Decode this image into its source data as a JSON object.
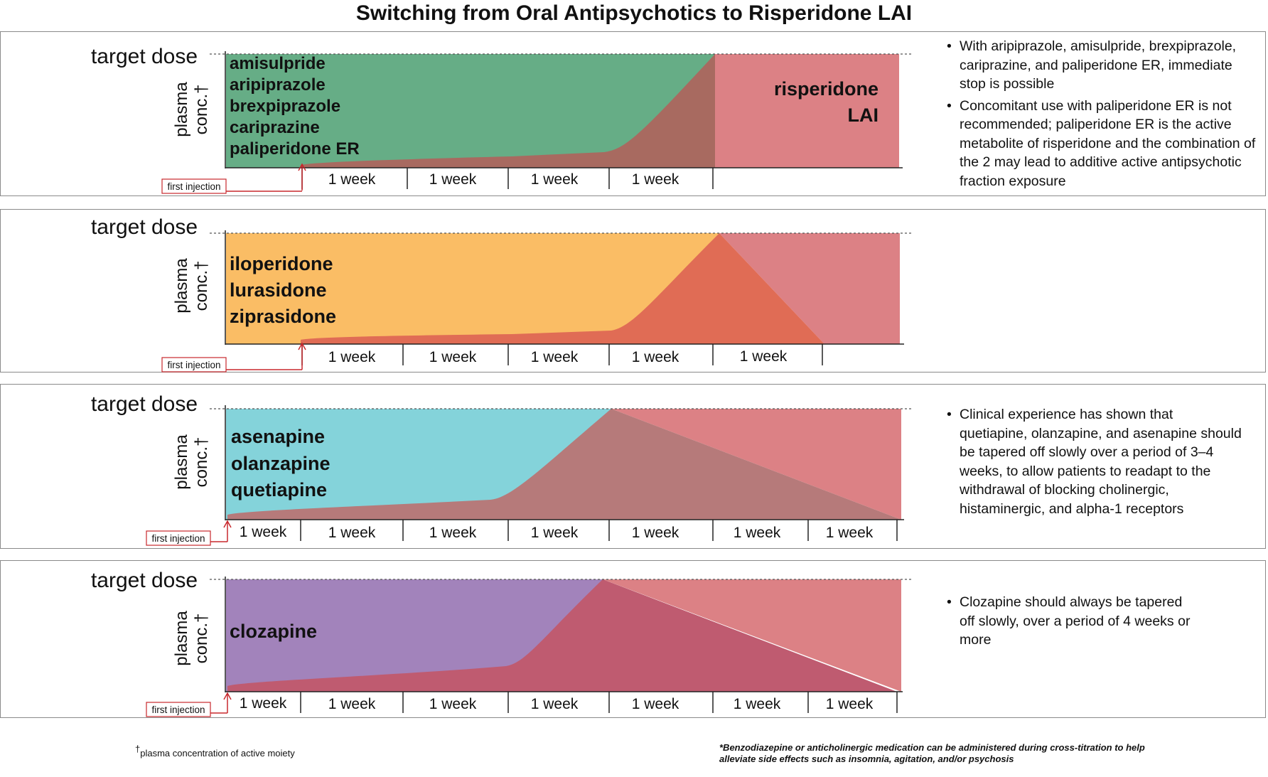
{
  "title": "Switching from Oral Antipsychotics to Risperidone LAI",
  "common": {
    "target_dose": "target dose",
    "ylabel_line1": "plasma",
    "ylabel_line2": "conc.†",
    "first_injection": "first injection",
    "week_label": "1 week"
  },
  "panels": [
    {
      "id": "panel-1",
      "drugs": [
        "amisulpride",
        "aripiprazole",
        "brexpiprazole",
        "cariprazine",
        "paliperidone ER"
      ],
      "lai_label": [
        "risperidone",
        "LAI"
      ],
      "oral_color": "#66ad86",
      "weeks": [
        "1 week",
        "1 week",
        "1 week",
        "1 week"
      ],
      "notes": [
        "With aripiprazole, amisulpride, brexpiprazole, cariprazine, and paliperidone ER, immediate stop is possible",
        "Concomitant use with paliperidone ER is not recommended; paliperidone ER is the active metabolite of risperidone and the combination of the 2 may lead to additive active antipsychotic fraction exposure"
      ]
    },
    {
      "id": "panel-2",
      "drugs": [
        "iloperidone",
        "lurasidone",
        "ziprasidone"
      ],
      "oral_color": "#fabd65",
      "weeks": [
        "1 week",
        "1 week",
        "1 week",
        "1 week",
        "1 week"
      ],
      "notes": []
    },
    {
      "id": "panel-3",
      "drugs": [
        "asenapine",
        "olanzapine",
        "quetiapine"
      ],
      "oral_color": "#84d3da",
      "weeks": [
        "1 week",
        "1 week",
        "1 week",
        "1 week",
        "1 week",
        "1 week",
        "1 week"
      ],
      "notes": [
        "Clinical experience has shown that quetiapine, olanzapine, and asenapine should be tapered off slowly over a period of  3–4 weeks, to allow patients to readapt to the withdrawal of blocking cholinergic, histaminergic, and alpha-1 receptors"
      ]
    },
    {
      "id": "panel-4",
      "drugs": [
        "clozapine"
      ],
      "oral_color": "#a283bb",
      "weeks": [
        "1 week",
        "1 week",
        "1 week",
        "1 week",
        "1 week",
        "1 week",
        "1 week"
      ],
      "notes": [
        "Clozapine should always be tapered off slowly, over a period of 4 weeks or more"
      ]
    }
  ],
  "colors": {
    "lai": "#dc8185",
    "arrow": "#c8282d",
    "axis": "#222222"
  },
  "footnote_left_mark": "†",
  "footnote_left": "plasma concentration of active moiety",
  "footnote_right": "*Benzodiazepine or anticholinergic medication can be administered during cross-titration to help alleviate side effects such as insomnia, agitation, and/or psychosis"
}
